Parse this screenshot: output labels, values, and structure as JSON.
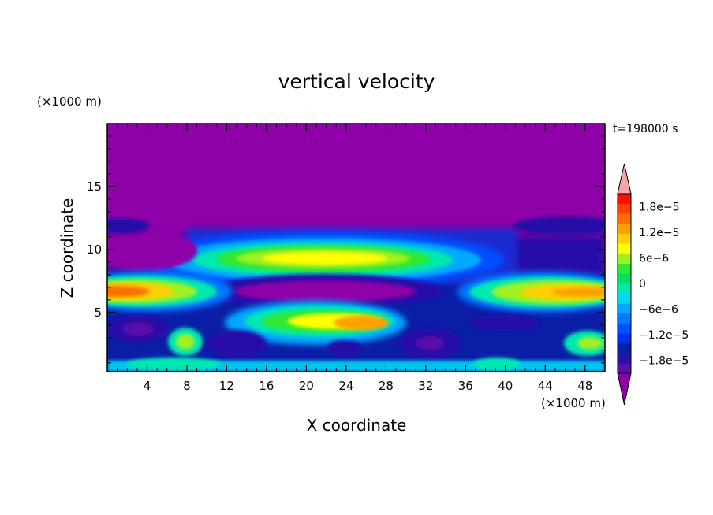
{
  "chart_data": {
    "type": "heatmap",
    "title": "vertical velocity",
    "xlabel": "X coordinate",
    "ylabel": "Z coordinate",
    "x_unit": "(×1000 m)",
    "y_unit": "(×1000 m)",
    "time_label": "t=198000 s",
    "xlim": [
      0,
      50
    ],
    "ylim": [
      0.3,
      20
    ],
    "x_ticks": [
      "4",
      "8",
      "12",
      "16",
      "20",
      "24",
      "28",
      "32",
      "36",
      "40",
      "44",
      "48"
    ],
    "y_ticks": [
      "5",
      "10",
      "15"
    ],
    "colorbar": {
      "range": [
        -2.1e-05,
        2.1e-05
      ],
      "tick_labels": [
        "1.8e−5",
        "1.2e−5",
        "6e−6",
        "0",
        "−6e−6",
        "−1.2e−5",
        "−1.8e−5"
      ],
      "tick_values": [
        1.8e-05,
        1.2e-05,
        6e-06,
        0,
        -6e-06,
        -1.2e-05,
        -1.8e-05
      ],
      "over_color": "#f4a3a8",
      "under_color": "#8e00a8",
      "colors_bottom_to_top": [
        "#5a10a8",
        "#2810a8",
        "#0a1ea8",
        "#0030e8",
        "#0050ff",
        "#0078ff",
        "#00a8ff",
        "#00d8f0",
        "#00e8b0",
        "#00e060",
        "#30e830",
        "#a0f020",
        "#ffff00",
        "#ffd000",
        "#ffa000",
        "#ff7000",
        "#ff4000",
        "#ff1000"
      ]
    },
    "background_value_color": "#8e00a8",
    "features": [
      {
        "x": 21,
        "z": 9,
        "value": 8e-06
      },
      {
        "x": 22,
        "z": 7.2,
        "value": -2.1e-05
      },
      {
        "x": 25,
        "z": 4.2,
        "value": 1e-05
      },
      {
        "x": 3,
        "z": 6.5,
        "value": 1.6e-05
      },
      {
        "x": 46,
        "z": 6.5,
        "value": 1.3e-05
      },
      {
        "x": 5,
        "z": 9.8,
        "value": -2.1e-05
      },
      {
        "x": 3,
        "z": 3.8,
        "value": -1.6e-05
      },
      {
        "x": 8,
        "z": 2.5,
        "value": 6e-06
      },
      {
        "x": 13,
        "z": 2.4,
        "value": -1.5e-05
      },
      {
        "x": 33,
        "z": 2.4,
        "value": -1.6e-05
      },
      {
        "x": 42,
        "z": 4.0,
        "value": -1.2e-05
      },
      {
        "x": 49,
        "z": 2.5,
        "value": 4e-06
      },
      {
        "x": 46,
        "z": 11.6,
        "value": -1.5e-05
      },
      {
        "x": 23,
        "z": 2.1,
        "value": -1.2e-05
      }
    ]
  }
}
